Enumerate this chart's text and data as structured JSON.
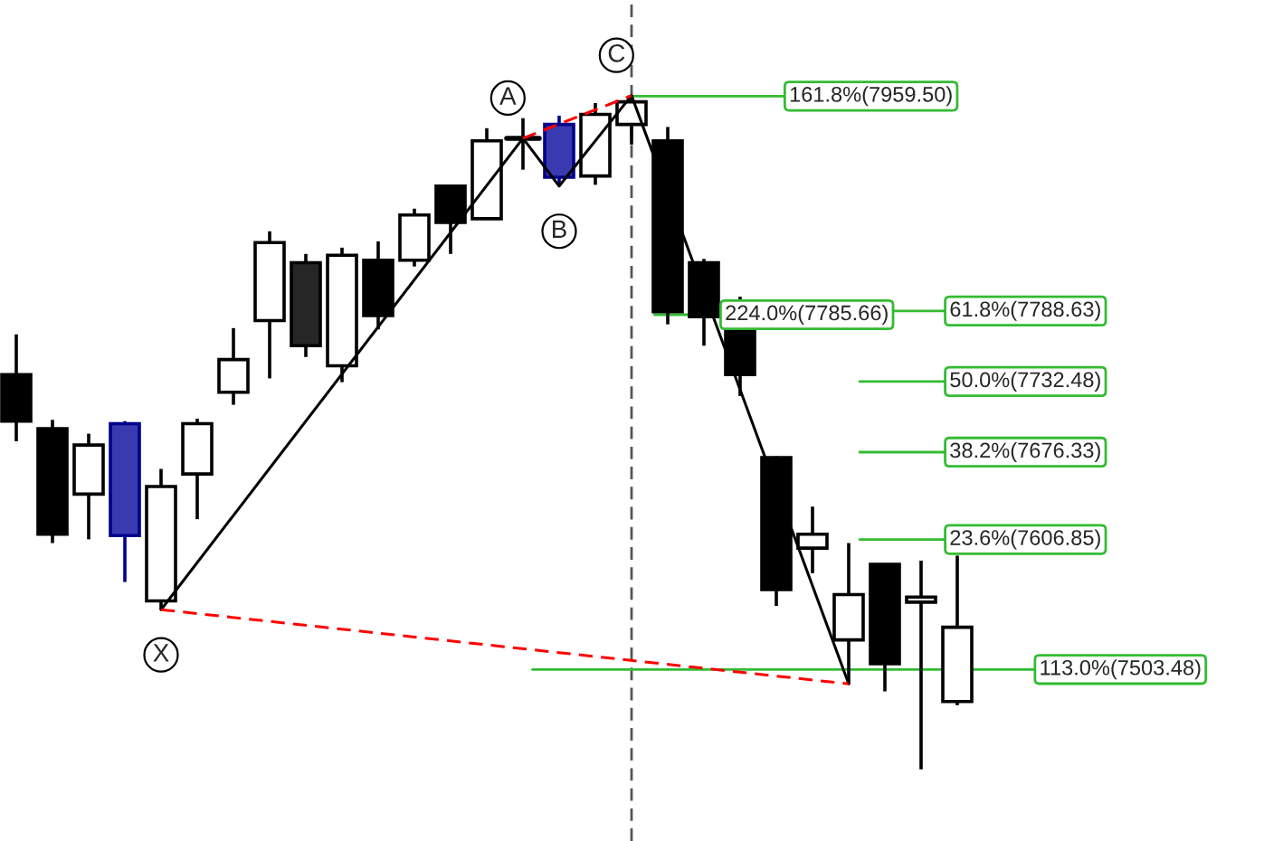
{
  "chart_data": {
    "type": "candlestick",
    "categories": [
      null,
      null,
      null,
      null,
      null,
      null,
      null,
      null,
      null,
      null,
      null,
      null,
      null,
      null,
      null,
      null,
      null,
      null,
      null,
      null,
      null,
      null,
      null,
      null,
      null,
      null,
      null
    ],
    "ohlc": [
      [
        7738,
        7770,
        7685,
        7701
      ],
      [
        7695,
        7702,
        7604,
        7611
      ],
      [
        7643,
        7691,
        7607,
        7682
      ],
      [
        7699,
        7701,
        7573,
        7610
      ],
      [
        7558,
        7663,
        7551,
        7649
      ],
      [
        7659,
        7703,
        7623,
        7699
      ],
      [
        7724,
        7775,
        7714,
        7750
      ],
      [
        7781,
        7852,
        7735,
        7843
      ],
      [
        7827,
        7834,
        7752,
        7761
      ],
      [
        7745,
        7839,
        7732,
        7833
      ],
      [
        7829,
        7844,
        7774,
        7785
      ],
      [
        7829,
        7870,
        7824,
        7865
      ],
      [
        7888,
        7888,
        7834,
        7859
      ],
      [
        7862,
        7934,
        7862,
        7924
      ],
      [
        7926,
        7942,
        7901,
        7926
      ],
      [
        7937,
        7944,
        7888,
        7895
      ],
      [
        7896,
        7954,
        7889,
        7945
      ],
      [
        7937,
        7960,
        7921,
        7955
      ],
      [
        7924,
        7935,
        7778,
        7788
      ],
      [
        7827,
        7830,
        7761,
        7784
      ],
      [
        7774,
        7800,
        7721,
        7738
      ],
      [
        7672,
        7673,
        7554,
        7567
      ],
      [
        7600,
        7633,
        7580,
        7611
      ],
      [
        7527,
        7604,
        7492,
        7563
      ],
      [
        7587,
        7587,
        7486,
        7508
      ],
      [
        7557,
        7590,
        7424,
        7561
      ],
      [
        7478,
        7594,
        7475,
        7537
      ]
    ],
    "colors": [
      "#000000",
      "#000000",
      "#ffffff",
      "#3a3ab0",
      "#ffffff",
      "#ffffff",
      "#ffffff",
      "#ffffff",
      "#262626",
      "#ffffff",
      "#000000",
      "#ffffff",
      "#000000",
      "#ffffff",
      "#000000",
      "#3a3ab0",
      "#ffffff",
      "#ffffff",
      "#000000",
      "#000000",
      "#000000",
      "#000000",
      "#ffffff",
      "#ffffff",
      "#000000",
      "#ffffff",
      "#ffffff"
    ],
    "series": [
      {
        "type": "line",
        "color": "#000000",
        "line_style": "solid",
        "values": [
          null,
          null,
          null,
          null,
          7551,
          null,
          null,
          null,
          null,
          null,
          null,
          null,
          null,
          null,
          7926,
          7888,
          null,
          7960,
          null,
          null,
          null,
          null,
          null,
          7492,
          null,
          null,
          null
        ],
        "value_labels": [
          null,
          null,
          null,
          null,
          "X",
          null,
          null,
          null,
          null,
          null,
          null,
          null,
          null,
          null,
          "A",
          "B",
          null,
          "C",
          null,
          null,
          null,
          null,
          null,
          null,
          null,
          null,
          null
        ]
      },
      {
        "type": "line",
        "color": "#ff0000",
        "line_style": "dashed",
        "values": [
          null,
          null,
          null,
          null,
          7551,
          null,
          null,
          null,
          null,
          null,
          null,
          null,
          null,
          null,
          null,
          null,
          null,
          null,
          null,
          null,
          null,
          null,
          null,
          7492,
          null,
          null,
          null
        ]
      },
      {
        "type": "line",
        "color": "#ff0000",
        "line_style": "dashed",
        "values": [
          null,
          null,
          null,
          null,
          null,
          null,
          null,
          null,
          null,
          null,
          null,
          null,
          null,
          null,
          7926,
          null,
          null,
          7960,
          null,
          null,
          null,
          null,
          null,
          null,
          null,
          null,
          null
        ]
      }
    ],
    "ylim": [
      7367,
      8036
    ],
    "ref_lines": [
      {
        "axis": "y",
        "value": 7959.5,
        "label": "161.8%(7959.50)",
        "color": "#33bb33"
      },
      {
        "axis": "y",
        "value": 7785.66,
        "label": "224.0%(7785.66)",
        "color": "#33bb33"
      },
      {
        "axis": "y",
        "value": 7788.63,
        "label": "61.8%(7788.63)",
        "color": "#33bb33"
      },
      {
        "axis": "y",
        "value": 7732.48,
        "label": "50.0%(7732.48)",
        "color": "#33bb33"
      },
      {
        "axis": "y",
        "value": 7676.33,
        "label": "38.2%(7676.33)",
        "color": "#33bb33"
      },
      {
        "axis": "y",
        "value": 7606.85,
        "label": "23.6%(7606.85)",
        "color": "#33bb33"
      },
      {
        "axis": "y",
        "value": 7503.48,
        "label": "113.0%(7503.48)",
        "color": "#33bb33"
      }
    ],
    "grid": false
  }
}
